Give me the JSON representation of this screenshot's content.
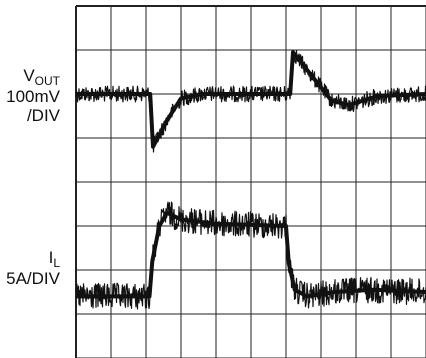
{
  "chart_data": {
    "type": "line",
    "title": "",
    "xlabel": "",
    "ylabel": "",
    "grid": true,
    "divisions": {
      "x": 10,
      "y": 8
    },
    "channels": [
      {
        "name": "V_OUT",
        "label_main": "V",
        "label_sub": "OUT",
        "scale_label": "100mV",
        "scale_suffix": "/DIV",
        "color": "#111111",
        "x_div": [
          0,
          2.12,
          2.2,
          2.6,
          3.0,
          3.6,
          5.0,
          6.12,
          6.2,
          6.7,
          7.3,
          7.8,
          8.6,
          10
        ],
        "y_div": [
          2.0,
          2.0,
          3.2,
          2.6,
          2.1,
          2.0,
          2.0,
          2.0,
          1.05,
          1.55,
          2.15,
          2.25,
          2.05,
          2.0
        ],
        "noise_div": 0.18
      },
      {
        "name": "I_L",
        "label_main": "I",
        "label_sub": "L",
        "scale_label": "5A/DIV",
        "color": "#111111",
        "x_div": [
          0,
          2.1,
          2.18,
          2.38,
          2.6,
          3.0,
          4.0,
          6.0,
          6.08,
          6.25,
          6.6,
          7.4,
          8.5,
          10
        ],
        "y_div": [
          6.6,
          6.6,
          5.8,
          5.0,
          4.7,
          4.85,
          4.95,
          5.0,
          5.85,
          6.45,
          6.6,
          6.5,
          6.45,
          6.5
        ],
        "noise_div": 0.3
      }
    ]
  }
}
